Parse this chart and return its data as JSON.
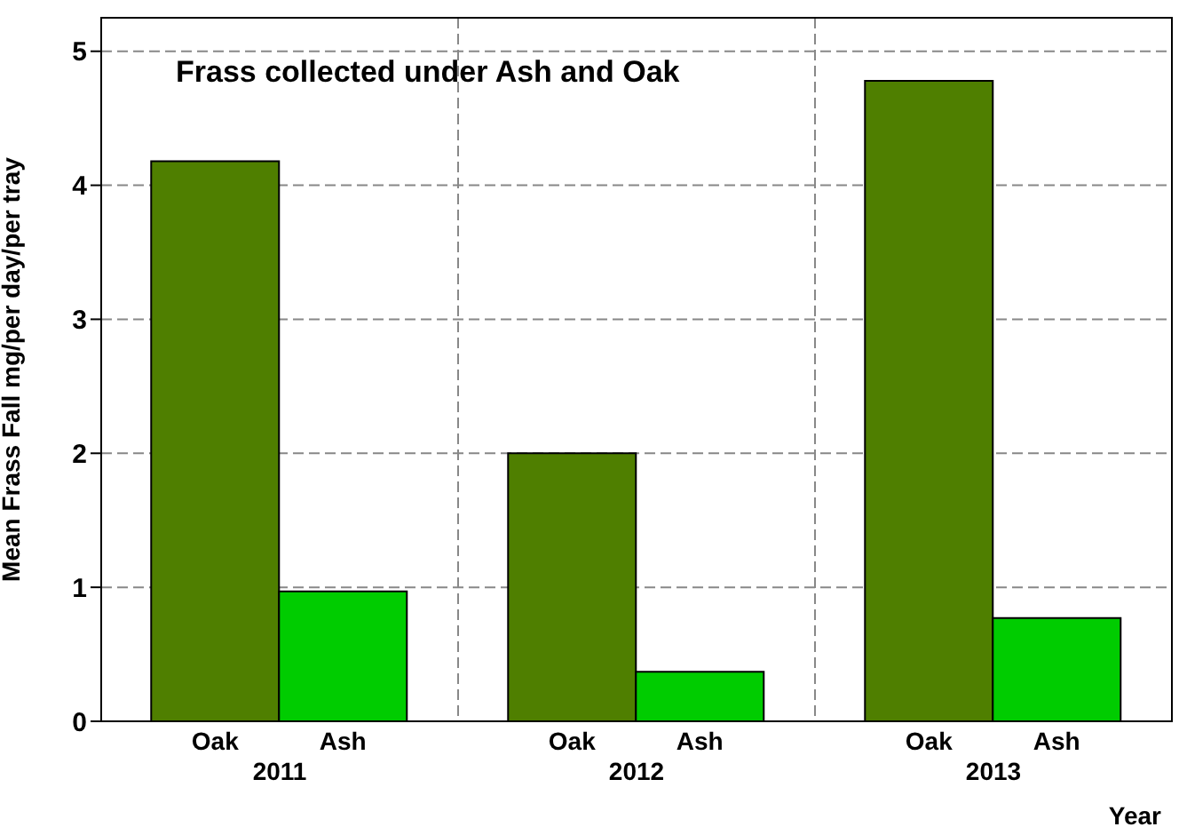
{
  "chart_data": {
    "type": "bar",
    "title": "Frass collected under Ash and Oak",
    "xlabel": "Year",
    "ylabel": "Mean Frass Fall mg/per day/per tray",
    "categories": [
      "2011",
      "2012",
      "2013"
    ],
    "series": [
      {
        "name": "Oak",
        "color": "#4f7f00",
        "values": [
          4.18,
          2.0,
          4.78
        ]
      },
      {
        "name": "Ash",
        "color": "#00cc00",
        "values": [
          0.97,
          0.37,
          0.77
        ]
      }
    ],
    "ylim": [
      0,
      5.25
    ],
    "yticks": [
      0,
      1,
      2,
      3,
      4,
      5
    ],
    "grid": true
  }
}
